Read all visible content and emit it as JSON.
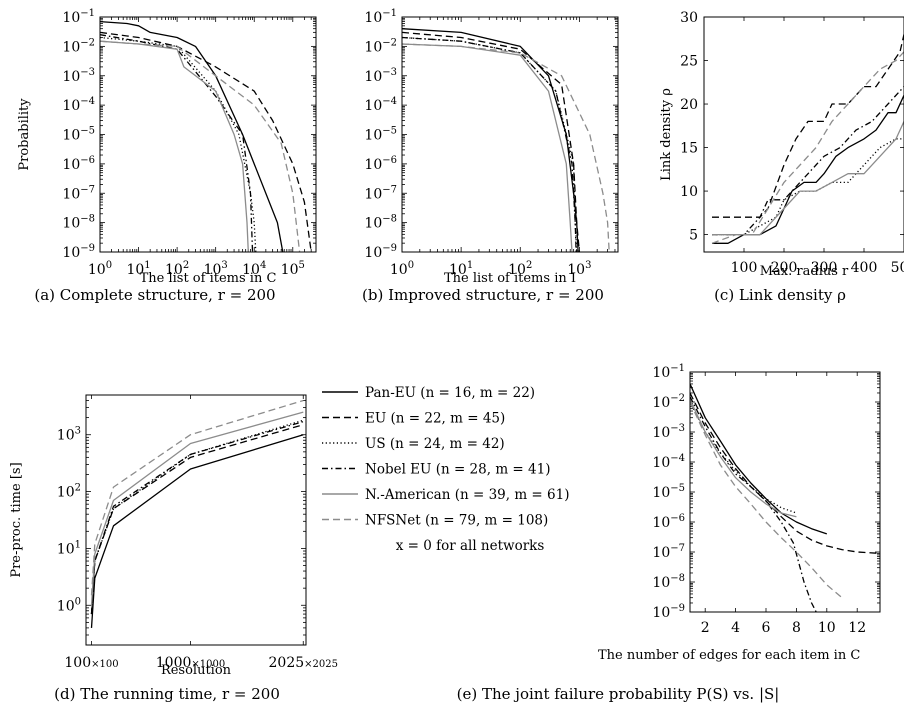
{
  "styles": {
    "Pan-EU": {
      "color": "#000000",
      "dash": ""
    },
    "EU": {
      "color": "#000000",
      "dash": "7,4"
    },
    "US": {
      "color": "#000000",
      "dash": "1.2,2.5"
    },
    "Nobel EU": {
      "color": "#000000",
      "dash": "6,3,1.5,3"
    },
    "N.-American": {
      "color": "#8c8c8c",
      "dash": ""
    },
    "NFSNet": {
      "color": "#8c8c8c",
      "dash": "7,4"
    }
  },
  "legend": {
    "entries": [
      {
        "series": "Pan-EU",
        "label": "Pan-EU (n = 16, m = 22)"
      },
      {
        "series": "EU",
        "label": "EU (n = 22, m = 45)"
      },
      {
        "series": "US",
        "label": "US (n = 24, m = 42)"
      },
      {
        "series": "Nobel EU",
        "label": "Nobel EU (n = 28, m = 41)"
      },
      {
        "series": "N.-American",
        "label": "N.-American (n = 39, m = 61)"
      },
      {
        "series": "NFSNet",
        "label": "NFSNet (n = 79, m = 108)"
      }
    ],
    "note": "x = 0 for all networks"
  },
  "chart_data": [
    {
      "id": "a",
      "type": "line",
      "title": "",
      "caption": "(a) Complete structure, r = 200",
      "xlabel": "The list of items in C",
      "ylabel": "Probability",
      "xscale": "log",
      "yscale": "log",
      "xlim": [
        1,
        400000
      ],
      "ylim": [
        1e-09,
        0.1
      ],
      "x_ticks": [
        "10^0",
        "10^1",
        "10^2",
        "10^3",
        "10^4",
        "10^5"
      ],
      "y_ticks": [
        "10^-1",
        "10^-2",
        "10^-3",
        "10^-4",
        "10^-5",
        "10^-6",
        "10^-7",
        "10^-8",
        "10^-9"
      ],
      "series": [
        {
          "name": "Pan-EU",
          "x": [
            1,
            5,
            10,
            20,
            100,
            300,
            1000,
            5000,
            20000,
            40000,
            55000
          ],
          "y": [
            0.07,
            0.06,
            0.05,
            0.03,
            0.02,
            0.01,
            0.001,
            1e-05,
            1e-07,
            1e-08,
            1e-09
          ]
        },
        {
          "name": "EU",
          "x": [
            1,
            10,
            100,
            1000,
            10000,
            30000,
            100000,
            200000,
            300000
          ],
          "y": [
            0.03,
            0.02,
            0.01,
            0.002,
            0.0003,
            3e-05,
            1e-06,
            5e-08,
            1e-09
          ]
        },
        {
          "name": "US",
          "x": [
            1,
            10,
            100,
            1000,
            4000,
            8000,
            10000,
            11000
          ],
          "y": [
            0.02,
            0.015,
            0.01,
            0.0003,
            1e-05,
            1e-07,
            1e-08,
            1e-09
          ]
        },
        {
          "name": "Nobel EU",
          "x": [
            1,
            10,
            100,
            1000,
            5000,
            8000,
            9000
          ],
          "y": [
            0.025,
            0.015,
            0.008,
            0.0002,
            1e-05,
            1e-07,
            1e-09
          ]
        },
        {
          "name": "N.-American",
          "x": [
            1,
            10,
            100,
            150,
            1000,
            3000,
            5000,
            6500,
            7000
          ],
          "y": [
            0.015,
            0.012,
            0.008,
            0.002,
            0.0003,
            1e-05,
            1e-06,
            1e-08,
            1e-09
          ]
        },
        {
          "name": "NFSNet",
          "x": [
            1,
            10,
            100,
            1000,
            10000,
            50000,
            100000,
            150000
          ],
          "y": [
            0.015,
            0.012,
            0.01,
            0.001,
            0.0001,
            5e-06,
            1e-07,
            1e-09
          ]
        }
      ]
    },
    {
      "id": "b",
      "type": "line",
      "title": "",
      "caption": "(b) Improved structure, r = 200",
      "xlabel": "The list of items in I",
      "ylabel": "",
      "xscale": "log",
      "yscale": "log",
      "xlim": [
        1,
        4500
      ],
      "ylim": [
        1e-09,
        0.1
      ],
      "x_ticks": [
        "10^0",
        "10^1",
        "10^2",
        "10^3"
      ],
      "y_ticks": [
        "10^-1",
        "10^-2",
        "10^-3",
        "10^-4",
        "10^-5",
        "10^-6",
        "10^-7",
        "10^-8",
        "10^-9"
      ],
      "series": [
        {
          "name": "Pan-EU",
          "x": [
            1,
            10,
            100,
            300,
            600,
            800,
            900,
            950
          ],
          "y": [
            0.04,
            0.03,
            0.01,
            0.001,
            1e-05,
            1e-07,
            1e-08,
            1e-09
          ]
        },
        {
          "name": "EU",
          "x": [
            1,
            10,
            100,
            500,
            800,
            900,
            1000
          ],
          "y": [
            0.03,
            0.02,
            0.008,
            0.0005,
            1e-06,
            1e-08,
            1e-09
          ]
        },
        {
          "name": "US",
          "x": [
            1,
            10,
            100,
            400,
            800,
            850,
            900
          ],
          "y": [
            0.02,
            0.015,
            0.006,
            0.0003,
            1e-06,
            1e-08,
            1e-09
          ]
        },
        {
          "name": "Nobel EU",
          "x": [
            1,
            10,
            100,
            400,
            750,
            850,
            880
          ],
          "y": [
            0.02,
            0.015,
            0.006,
            0.0003,
            1e-06,
            1e-08,
            1e-09
          ]
        },
        {
          "name": "N.-American",
          "x": [
            1,
            10,
            100,
            300,
            600,
            700,
            750
          ],
          "y": [
            0.012,
            0.01,
            0.005,
            0.0003,
            1e-06,
            1e-08,
            1e-09
          ]
        },
        {
          "name": "NFSNet",
          "x": [
            1,
            10,
            100,
            500,
            1500,
            2500,
            3000,
            3200
          ],
          "y": [
            0.012,
            0.01,
            0.006,
            0.001,
            1e-05,
            1e-07,
            1e-08,
            1e-09
          ]
        }
      ]
    },
    {
      "id": "c",
      "type": "line",
      "title": "",
      "caption": "(c) Link density ρ",
      "xlabel": "Max. radius r",
      "ylabel": "Link density ρ",
      "xscale": "linear",
      "yscale": "linear",
      "xlim": [
        0,
        500
      ],
      "ylim": [
        3,
        30
      ],
      "x_ticks": [
        "100",
        "200",
        "300",
        "400",
        "500"
      ],
      "y_ticks": [
        "5",
        "10",
        "15",
        "20",
        "25",
        "30"
      ],
      "series": [
        {
          "name": "Pan-EU",
          "x": [
            20,
            60,
            100,
            140,
            180,
            200,
            220,
            250,
            280,
            300,
            330,
            360,
            400,
            430,
            460,
            480,
            500
          ],
          "y": [
            4,
            4,
            5,
            5,
            6,
            8,
            10,
            11,
            11,
            12,
            14,
            15,
            16,
            17,
            19,
            19,
            21
          ]
        },
        {
          "name": "EU",
          "x": [
            20,
            100,
            140,
            160,
            200,
            230,
            260,
            300,
            320,
            360,
            400,
            430,
            460,
            490,
            500
          ],
          "y": [
            7,
            7,
            7,
            8,
            13,
            16,
            18,
            18,
            20,
            20,
            22,
            22,
            24,
            26,
            28
          ]
        },
        {
          "name": "US",
          "x": [
            20,
            100,
            140,
            180,
            200,
            240,
            280,
            320,
            360,
            400,
            440,
            480,
            500
          ],
          "y": [
            5,
            5,
            6,
            7,
            9,
            10,
            10,
            11,
            11,
            13,
            15,
            16,
            16
          ]
        },
        {
          "name": "Nobel EU",
          "x": [
            20,
            100,
            140,
            160,
            200,
            240,
            280,
            300,
            340,
            380,
            420,
            460,
            500
          ],
          "y": [
            5,
            5,
            7,
            9,
            9,
            11,
            13,
            14,
            15,
            17,
            18,
            20,
            22
          ]
        },
        {
          "name": "N.-American",
          "x": [
            20,
            100,
            140,
            180,
            200,
            240,
            280,
            320,
            360,
            400,
            440,
            480,
            500
          ],
          "y": [
            5,
            5,
            5,
            7,
            8,
            10,
            10,
            11,
            12,
            12,
            14,
            16,
            18
          ]
        },
        {
          "name": "NFSNet",
          "x": [
            20,
            80,
            120,
            160,
            200,
            240,
            280,
            320,
            360,
            400,
            440,
            480,
            500
          ],
          "y": [
            4,
            5,
            5,
            8,
            11,
            13,
            15,
            18,
            20,
            22,
            24,
            25,
            26
          ]
        }
      ]
    },
    {
      "id": "d",
      "type": "line",
      "title": "",
      "caption": "(d) The running time, r = 200",
      "xlabel": "Resolution",
      "ylabel": "Pre-proc. time [s]",
      "xscale": "linear",
      "yscale": "log",
      "xlim": [
        50,
        2050
      ],
      "ylim": [
        0.2,
        5000
      ],
      "x_ticks": [
        "100×100",
        "1000×1000",
        "2025×2025"
      ],
      "x_tick_values": [
        100,
        1000,
        2025
      ],
      "y_ticks": [
        "10^0",
        "10^1",
        "10^2",
        "10^3"
      ],
      "series": [
        {
          "name": "Pan-EU",
          "x": [
            100,
            130,
            300,
            1000,
            2025
          ],
          "y": [
            0.4,
            3,
            25,
            250,
            1000
          ]
        },
        {
          "name": "EU",
          "x": [
            100,
            130,
            300,
            1000,
            2025
          ],
          "y": [
            0.7,
            6,
            50,
            400,
            1500
          ]
        },
        {
          "name": "US",
          "x": [
            100,
            130,
            300,
            1000,
            2025
          ],
          "y": [
            0.7,
            6,
            50,
            450,
            1800
          ]
        },
        {
          "name": "Nobel EU",
          "x": [
            100,
            130,
            300,
            1000,
            2025
          ],
          "y": [
            0.7,
            6,
            55,
            450,
            1700
          ]
        },
        {
          "name": "N.-American",
          "x": [
            100,
            130,
            300,
            1000,
            2025
          ],
          "y": [
            1,
            8,
            70,
            700,
            2500
          ]
        },
        {
          "name": "NFSNet",
          "x": [
            100,
            130,
            300,
            1000,
            2025
          ],
          "y": [
            1.5,
            12,
            120,
            1000,
            4000
          ]
        }
      ]
    },
    {
      "id": "e",
      "type": "line",
      "title": "",
      "caption": "(e) The joint failure probability P(S) vs. |S|",
      "xlabel": "The number of edges for each item in C",
      "ylabel": "",
      "xscale": "linear",
      "yscale": "log",
      "xlim": [
        1,
        13.5
      ],
      "ylim": [
        1e-09,
        0.1
      ],
      "x_ticks": [
        "2",
        "4",
        "6",
        "8",
        "10",
        "12"
      ],
      "y_ticks": [
        "10^-1",
        "10^-2",
        "10^-3",
        "10^-4",
        "10^-5",
        "10^-6",
        "10^-7",
        "10^-8",
        "10^-9"
      ],
      "series": [
        {
          "name": "Pan-EU",
          "x": [
            1,
            2,
            3,
            4,
            5,
            6,
            7,
            8,
            9,
            10
          ],
          "y": [
            0.04,
            0.003,
            0.0005,
            8e-05,
            2e-05,
            6e-06,
            2e-06,
            1e-06,
            6e-07,
            4e-07
          ]
        },
        {
          "name": "EU",
          "x": [
            1,
            2,
            3,
            4,
            5,
            6,
            7,
            8,
            9,
            10,
            11,
            12,
            13.5
          ],
          "y": [
            0.02,
            0.002,
            0.0003,
            6e-05,
            1.5e-05,
            5e-06,
            1.5e-06,
            5e-07,
            2.5e-07,
            1.6e-07,
            1.2e-07,
            1e-07,
            9e-08
          ]
        },
        {
          "name": "US",
          "x": [
            1,
            2,
            3,
            4,
            5,
            6,
            7,
            8
          ],
          "y": [
            0.01,
            0.001,
            0.0002,
            5e-05,
            1.5e-05,
            6e-06,
            3e-06,
            2e-06
          ]
        },
        {
          "name": "Nobel EU",
          "x": [
            1,
            2,
            3,
            4,
            5,
            6,
            7,
            7.8,
            8.5,
            9,
            9.3
          ],
          "y": [
            0.015,
            0.0015,
            0.0002,
            4e-05,
            1.5e-05,
            5e-06,
            1e-06,
            2e-07,
            1e-08,
            2e-09,
            1e-09
          ]
        },
        {
          "name": "N.-American",
          "x": [
            1,
            2,
            3,
            4,
            5,
            6,
            7,
            8
          ],
          "y": [
            0.012,
            0.001,
            0.00015,
            3e-05,
            1e-05,
            4e-06,
            2e-06,
            1.5e-06
          ]
        },
        {
          "name": "NFSNet",
          "x": [
            1,
            2,
            3,
            4,
            5,
            6,
            7,
            8,
            9,
            10,
            11
          ],
          "y": [
            0.01,
            0.0008,
            8e-05,
            1.5e-05,
            4e-06,
            1e-06,
            3e-07,
            1e-07,
            3e-08,
            8e-09,
            3e-09
          ]
        }
      ]
    }
  ]
}
